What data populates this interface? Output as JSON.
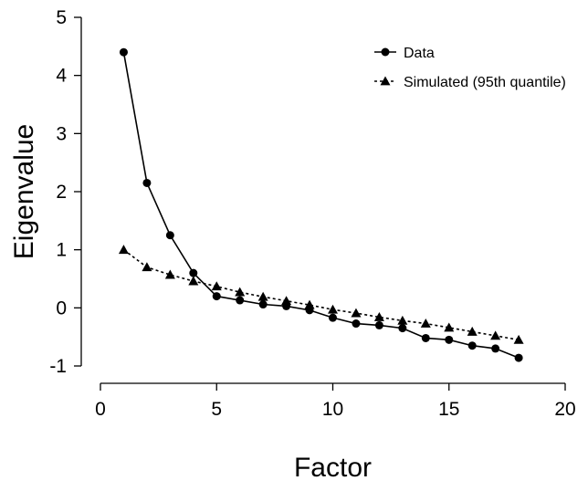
{
  "chart_data": {
    "type": "line",
    "xlabel": "Factor",
    "ylabel": "Eigenvalue",
    "xlim": [
      0,
      20
    ],
    "ylim": [
      -1,
      5
    ],
    "xticks": [
      0,
      5,
      10,
      15,
      20
    ],
    "yticks": [
      -1,
      0,
      1,
      2,
      3,
      4,
      5
    ],
    "grid": false,
    "legend_position": "top-right",
    "x": [
      1,
      2,
      3,
      4,
      5,
      6,
      7,
      8,
      9,
      10,
      11,
      12,
      13,
      14,
      15,
      16,
      17,
      18
    ],
    "series": [
      {
        "name": "Data",
        "marker": "circle",
        "line_style": "solid",
        "values": [
          4.4,
          2.15,
          1.25,
          0.6,
          0.2,
          0.13,
          0.06,
          0.03,
          -0.04,
          -0.17,
          -0.27,
          -0.3,
          -0.35,
          -0.52,
          -0.55,
          -0.65,
          -0.7,
          -0.86
        ]
      },
      {
        "name": "Simulated (95th quantile)",
        "marker": "triangle",
        "line_style": "dotted",
        "values": [
          1.0,
          0.7,
          0.57,
          0.46,
          0.37,
          0.27,
          0.19,
          0.12,
          0.05,
          -0.03,
          -0.09,
          -0.16,
          -0.22,
          -0.27,
          -0.34,
          -0.41,
          -0.48,
          -0.55
        ]
      }
    ]
  }
}
